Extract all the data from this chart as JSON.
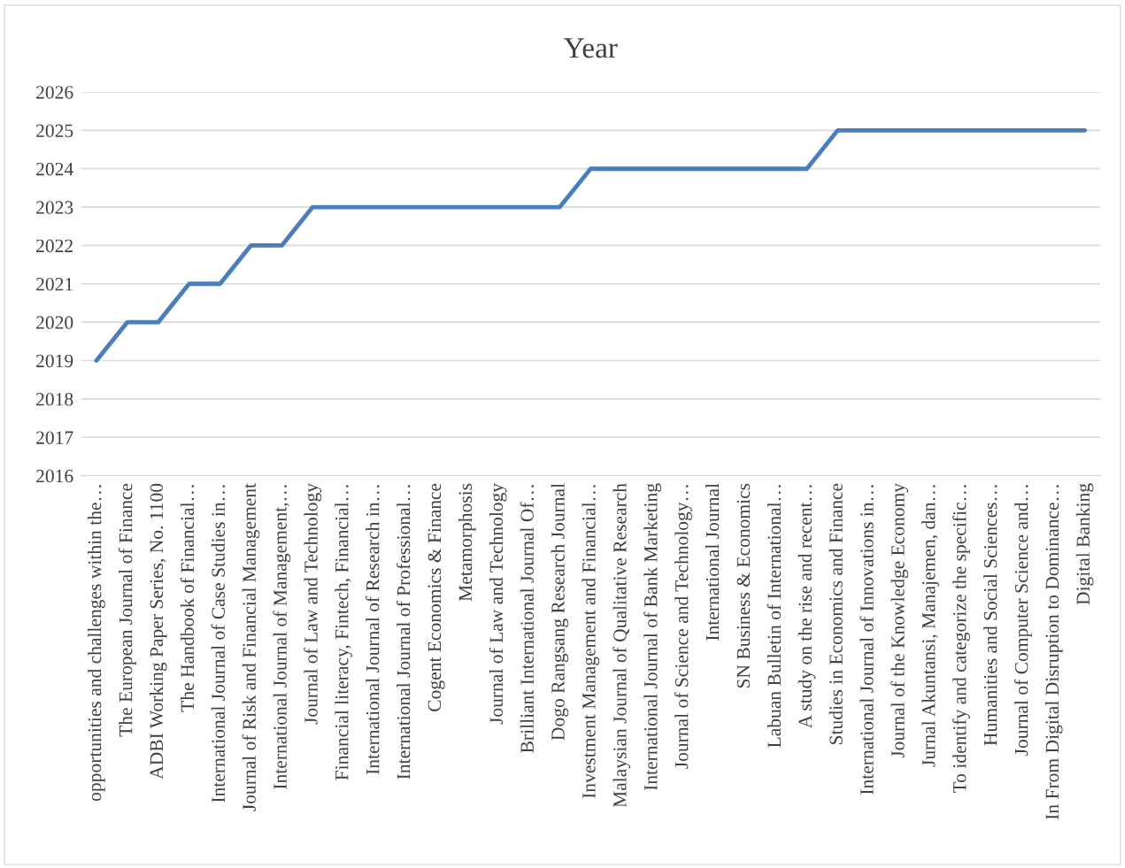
{
  "chart_data": {
    "type": "line",
    "title": "Year",
    "categories": [
      "opportunities and challenges within the…",
      "The European Journal of Finance",
      "ADBI Working Paper Series, No. 1100",
      "The Handbook of Financial…",
      "International Journal of Case Studies in…",
      "Journal of Risk and Financial Management",
      "International Journal of Management,…",
      "Journal of Law and Technology",
      "Financial literacy, Fintech, Financial…",
      "International Journal of Research in…",
      "International Journal of Professional…",
      "Cogent Economics & Finance",
      "Metamorphosis",
      "Journal of Law and Technology",
      "Brilliant International Journal Of…",
      "Dogo Rangsang Research Journal",
      "Investment Management and Financial…",
      "Malaysian Journal of Qualitative Research",
      "International Journal of Bank Marketing",
      "Journal of Science and Technology…",
      "International Journal",
      "SN Business & Economics",
      "Labuan Bulletin of International…",
      "A study on the rise and recent…",
      "Studies in Economics and Finance",
      "International Journal of Innovations in…",
      "Journal of the Knowledge Economy",
      "Jurnal Akuntansi, Manajemen, dan…",
      "To identify and categorize the specific…",
      "Humanities and Social Sciences…",
      "Journal of Computer Science and…",
      "In From Digital Disruption to Dominance…",
      "Digital Banking"
    ],
    "series": [
      {
        "color": "#4a7ebb",
        "values": [
          2019,
          2020,
          2020,
          2021,
          2021,
          2022,
          2022,
          2023,
          2023,
          2023,
          2023,
          2023,
          2023,
          2023,
          2023,
          2023,
          2024,
          2024,
          2024,
          2024,
          2024,
          2024,
          2024,
          2024,
          2025,
          2025,
          2025,
          2025,
          2025,
          2025,
          2025,
          2025,
          2025
        ]
      }
    ],
    "ylim": [
      2016,
      2026
    ],
    "yticks": [
      2016,
      2017,
      2018,
      2019,
      2020,
      2021,
      2022,
      2023,
      2024,
      2025,
      2026
    ],
    "grid": "y",
    "marker": "none",
    "line_style": "solid"
  }
}
